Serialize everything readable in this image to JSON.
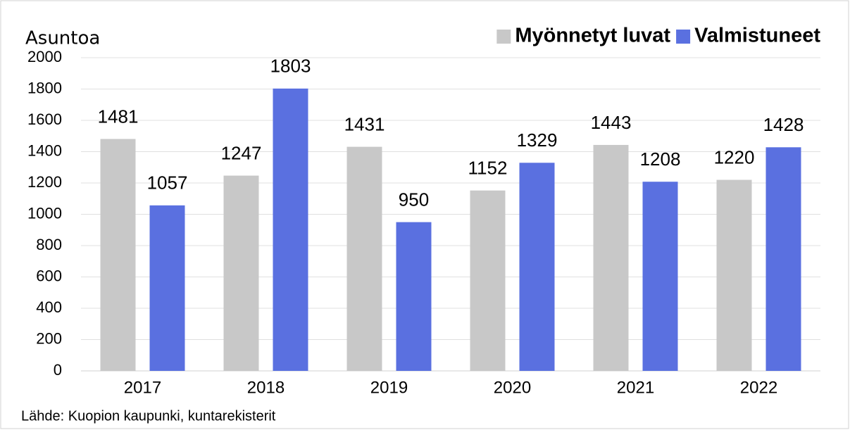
{
  "chart_data": {
    "type": "bar",
    "y_axis_label": "Asuntoa",
    "source": "Lähde: Kuopion kaupunki, kuntarekisterit",
    "categories": [
      "2017",
      "2018",
      "2019",
      "2020",
      "2021",
      "2022"
    ],
    "series": [
      {
        "name": "Myönnetyt luvat",
        "color": "#c8c8c8",
        "values": [
          1481,
          1247,
          1431,
          1152,
          1443,
          1220
        ]
      },
      {
        "name": "Valmistuneet",
        "color": "#5a70e0",
        "values": [
          1057,
          1803,
          950,
          1329,
          1208,
          1428
        ]
      }
    ],
    "ylim": [
      0,
      2000
    ],
    "yticks": [
      0,
      200,
      400,
      600,
      800,
      1000,
      1200,
      1400,
      1600,
      1800,
      2000
    ],
    "grid": true,
    "legend": "top-right"
  }
}
